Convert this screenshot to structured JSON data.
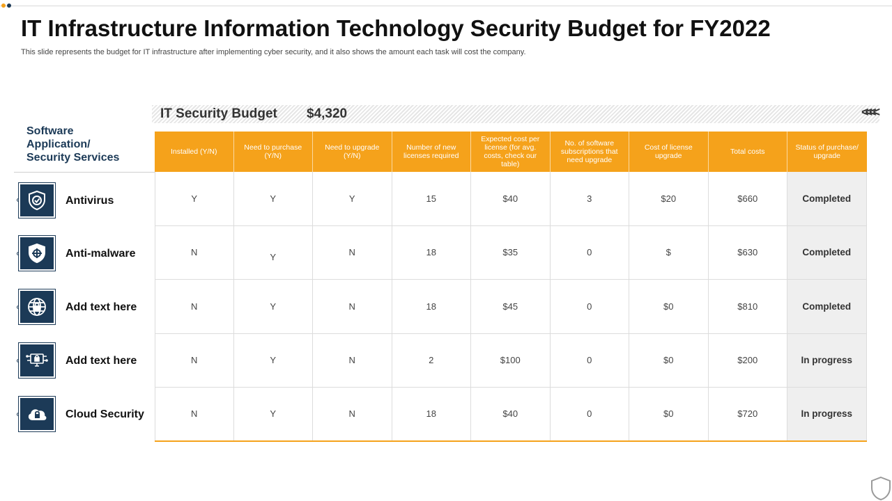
{
  "title": "IT Infrastructure Information Technology Security Budget for FY2022",
  "subtitle": "This slide represents the budget for IT infrastructure after implementing cyber security, and it also shows the amount each task will cost the company.",
  "budget": {
    "label": "IT Security Budget",
    "value": "$4,320",
    "chevrons": "<<<<"
  },
  "left_header": {
    "line1": "Software",
    "line2": "Application/",
    "line3": "Security Services"
  },
  "columns": [
    "Installed (Y/N)",
    "Need to purchase (Y/N)",
    "Need to upgrade (Y/N)",
    "Number of new licenses required",
    "Expected cost per license (for avg. costs, check our table)",
    "No. of software subscriptions that need upgrade",
    "Cost of license upgrade",
    "Total costs",
    "Status of purchase/ upgrade"
  ],
  "rows": [
    {
      "name": "Antivirus",
      "icon": "shield-check-icon",
      "cells": [
        "Y",
        "Y",
        "Y",
        "15",
        "$40",
        "3",
        "$20",
        "$660",
        "Completed"
      ]
    },
    {
      "name": "Anti-malware",
      "icon": "shield-target-icon",
      "cells": [
        "N",
        "Y",
        "N",
        "18",
        "$35",
        "0",
        "$",
        "$630",
        "Completed"
      ]
    },
    {
      "name": "Add text here",
      "icon": "globe-lock-icon",
      "cells": [
        "N",
        "Y",
        "N",
        "18",
        "$45",
        "0",
        "$0",
        "$810",
        "Completed"
      ]
    },
    {
      "name": "Add text here",
      "icon": "monitor-lock-icon",
      "cells": [
        "N",
        "Y",
        "N",
        "2",
        "$100",
        "0",
        "$0",
        "$200",
        "In progress"
      ]
    },
    {
      "name": "Cloud Security",
      "icon": "cloud-lock-icon",
      "cells": [
        "N",
        "Y",
        "N",
        "18",
        "$40",
        "0",
        "$0",
        "$720",
        "In progress"
      ]
    }
  ],
  "colors": {
    "accent": "#f5a21b",
    "navy": "#1c3a57",
    "status_bg": "#efefef"
  }
}
